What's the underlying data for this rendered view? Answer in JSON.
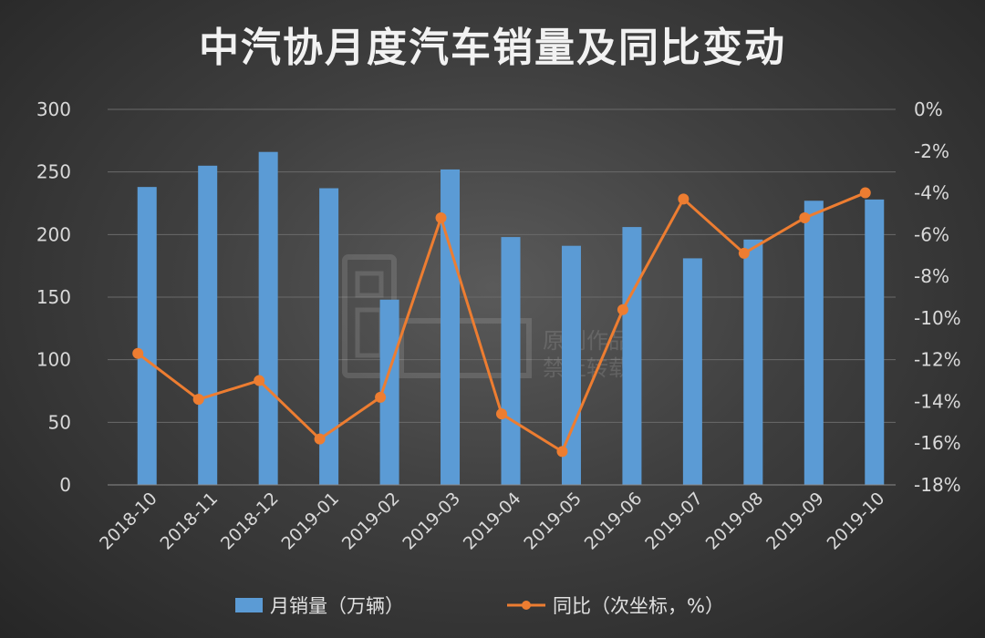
{
  "chart_data": {
    "type": "bar+line",
    "title": "中汽协月度汽车销量及同比变动",
    "categories": [
      "2018-10",
      "2018-11",
      "2018-12",
      "2019-01",
      "2019-02",
      "2019-03",
      "2019-04",
      "2019-05",
      "2019-06",
      "2019-07",
      "2019-08",
      "2019-09",
      "2019-10"
    ],
    "series": [
      {
        "name": "月销量（万辆）",
        "type": "bar",
        "axis": "left",
        "values": [
          238,
          255,
          266,
          237,
          148,
          252,
          198,
          191,
          206,
          181,
          196,
          227,
          228
        ]
      },
      {
        "name": "同比（次坐标，%）",
        "type": "line",
        "axis": "right",
        "values": [
          -11.7,
          -13.9,
          -13.0,
          -15.8,
          -13.8,
          -5.2,
          -14.6,
          -16.4,
          -9.6,
          -4.3,
          -6.9,
          -5.2,
          -4.0
        ]
      }
    ],
    "y_left": {
      "min": 0,
      "max": 300,
      "ticks": [
        0,
        50,
        100,
        150,
        200,
        250,
        300
      ]
    },
    "y_right": {
      "min": -18,
      "max": 0,
      "ticks": [
        "0%",
        "-2%",
        "-4%",
        "-6%",
        "-8%",
        "-10%",
        "-12%",
        "-14%",
        "-16%",
        "-18%"
      ]
    },
    "grid": true,
    "legend": "bottom",
    "colors": {
      "bar": "#5b9bd5",
      "line": "#ed7d31",
      "grid": "#6a6a6a"
    }
  },
  "watermark": {
    "line1": "原创作品",
    "line2": "禁止转载"
  }
}
